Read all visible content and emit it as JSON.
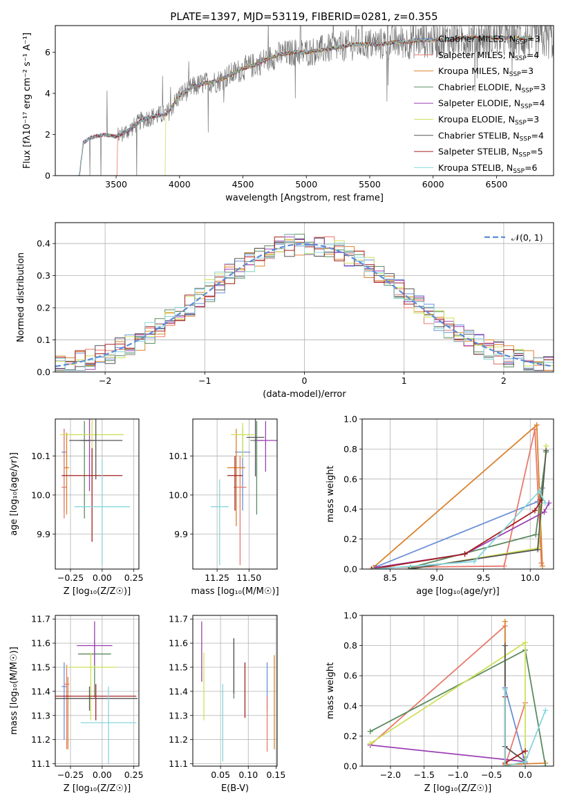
{
  "title": "PLATE=1397, MJD=53119, FIBERID=0281, z=0.355",
  "series_labels": [
    {
      "base": "Chabrier MILES, N",
      "sub": "SSP",
      "tail": "=3",
      "color": "#6a8fd6"
    },
    {
      "base": "Salpeter MILES, N",
      "sub": "SSP",
      "tail": "=4",
      "color": "#e8796c"
    },
    {
      "base": "Kroupa MILES, N",
      "sub": "SSP",
      "tail": "=3",
      "color": "#d9822b"
    },
    {
      "base": "Chabrier ELODIE, N",
      "sub": "SSP",
      "tail": "=3",
      "color": "#5a8a5e"
    },
    {
      "base": "Salpeter ELODIE, N",
      "sub": "SSP",
      "tail": "=4",
      "color": "#9b3fb3"
    },
    {
      "base": "Kroupa ELODIE, N",
      "sub": "SSP",
      "tail": "=3",
      "color": "#cfe05a"
    },
    {
      "base": "Chabrier STELIB, N",
      "sub": "SSP",
      "tail": "=4",
      "color": "#555555"
    },
    {
      "base": "Salpeter STELIB, N",
      "sub": "SSP",
      "tail": "=5",
      "color": "#a31f1f"
    },
    {
      "base": "Kroupa STELIB, N",
      "sub": "SSP",
      "tail": "=6",
      "color": "#86d6dc"
    }
  ],
  "chart_data": [
    {
      "id": "spectrum",
      "type": "line",
      "xlabel": "wavelength [Angstrom, rest frame]",
      "ylabel": "Flux [fλ10⁻¹⁷ erg cm⁻² s⁻¹ A⁻¹]",
      "xlim": [
        3020,
        6950
      ],
      "ylim": [
        0,
        7.3
      ],
      "xticks": [
        3500,
        4000,
        4500,
        5000,
        5500,
        6000,
        6500
      ],
      "yticks": [
        0,
        2,
        4,
        6
      ],
      "model_anchors": {
        "x": [
          3210,
          3240,
          3300,
          3400,
          3500,
          3600,
          3700,
          3800,
          3900,
          4000,
          4100,
          4200,
          4300,
          4400,
          4500,
          4600,
          4700,
          4800,
          4900,
          5000,
          5100,
          5200,
          5300,
          5400,
          5500,
          5600,
          5700,
          5800,
          5900,
          6000,
          6100,
          6200,
          6300,
          6400,
          6500,
          6600,
          6700
        ],
        "y": [
          0,
          1.6,
          1.85,
          2.0,
          1.9,
          2.2,
          2.7,
          2.9,
          3.0,
          3.9,
          4.3,
          4.5,
          4.6,
          4.9,
          5.2,
          5.4,
          5.7,
          5.9,
          6.0,
          6.0,
          6.1,
          6.2,
          6.3,
          6.4,
          6.4,
          6.4,
          6.5,
          6.5,
          6.6,
          6.6,
          6.6,
          6.7,
          6.7,
          6.7,
          6.7,
          6.7,
          6.7
        ]
      },
      "data_start_x": 3510
    },
    {
      "id": "residual-histogram",
      "type": "histogram",
      "xlabel": "(data-model)/error",
      "ylabel": "Normed distribution",
      "xlim": [
        -2.5,
        2.5
      ],
      "ylim": [
        0,
        0.465
      ],
      "xticks": [
        -2,
        -1,
        0,
        1,
        2
      ],
      "yticks": [
        0.0,
        0.1,
        0.2,
        0.3,
        0.4
      ],
      "bin_width": 0.1,
      "legend": "𝒩(0, 1)",
      "legend_position": "top-right",
      "reference_curve": "normal(0,1)"
    },
    {
      "id": "age-vs-z",
      "type": "errorbar",
      "xlabel": "Z [log₁₀(Z/Z☉)]",
      "ylabel": "age  [log₁₀(age/yr)]",
      "xlim": [
        -0.37,
        0.29
      ],
      "ylim": [
        9.81,
        10.195
      ],
      "xticks": [
        -0.25,
        0.0,
        0.25
      ],
      "yticks": [
        9.9,
        10.0,
        10.1
      ],
      "points": [
        {
          "x": -0.3,
          "xerr": 0.02,
          "y": 10.11,
          "yerr": [
            0.15,
            0.06
          ]
        },
        {
          "x": -0.3,
          "xerr": 0.02,
          "y": 10.02,
          "yerr": [
            0.08,
            0.15
          ]
        },
        {
          "x": -0.28,
          "xerr": 0.02,
          "y": 10.07,
          "yerr": [
            0.12,
            0.09
          ]
        },
        {
          "x": -0.14,
          "xerr": 0.04,
          "y": 10.14,
          "yerr": [
            0.2,
            0.05
          ]
        },
        {
          "x": -0.1,
          "xerr": 0.05,
          "y": 10.14,
          "yerr": [
            0.13,
            0.06
          ]
        },
        {
          "x": -0.08,
          "xerr": 0.25,
          "y": 10.155,
          "yerr": [
            0.12,
            0.06
          ]
        },
        {
          "x": -0.05,
          "xerr": 0.21,
          "y": 10.14,
          "yerr": [
            0.1,
            0.07
          ]
        },
        {
          "x": -0.08,
          "xerr": 0.24,
          "y": 10.05,
          "yerr": [
            0.17,
            0.07
          ]
        },
        {
          "x": 0.0,
          "xerr": 0.22,
          "y": 9.97,
          "yerr": [
            0.15,
            0.12
          ]
        }
      ]
    },
    {
      "id": "age-vs-mass",
      "type": "errorbar",
      "xlabel": "mass [log₁₀(M/M☉)]",
      "ylabel": "",
      "xlim": [
        11.06,
        11.72
      ],
      "ylim": [
        9.81,
        10.195
      ],
      "xticks": [
        11.25,
        11.5
      ],
      "yticks": [
        9.9,
        10.0,
        10.1
      ],
      "points": [
        {
          "x": 11.45,
          "xerr": 0.06,
          "y": 10.11,
          "yerr": [
            0.15,
            0.06
          ]
        },
        {
          "x": 11.43,
          "xerr": 0.05,
          "y": 10.02,
          "yerr": [
            0.2,
            0.08
          ]
        },
        {
          "x": 11.4,
          "xerr": 0.07,
          "y": 10.07,
          "yerr": [
            0.15,
            0.1
          ]
        },
        {
          "x": 11.56,
          "xerr": 0.05,
          "y": 10.14,
          "yerr": [
            0.19,
            0.05
          ]
        },
        {
          "x": 11.63,
          "xerr": 0.09,
          "y": 10.14,
          "yerr": [
            0.08,
            0.05
          ]
        },
        {
          "x": 11.45,
          "xerr": 0.09,
          "y": 10.155,
          "yerr": [
            0.06,
            0.03
          ]
        },
        {
          "x": 11.55,
          "xerr": 0.07,
          "y": 10.148,
          "yerr": [
            0.1,
            0.05
          ]
        },
        {
          "x": 11.39,
          "xerr": 0.06,
          "y": 10.05,
          "yerr": [
            0.09,
            0.05
          ]
        },
        {
          "x": 11.27,
          "xerr": 0.07,
          "y": 9.97,
          "yerr": [
            0.15,
            0.07
          ]
        }
      ]
    },
    {
      "id": "massweight-vs-age",
      "type": "line",
      "xlabel": "age  [log₁₀(age/yr)]",
      "ylabel": "mass weight",
      "xlim": [
        8.2,
        10.25
      ],
      "ylim": [
        0,
        1.0
      ],
      "xticks": [
        8.5,
        9.0,
        9.5,
        10.0
      ],
      "yticks": [
        0.0,
        0.2,
        0.4,
        0.6,
        0.8,
        1.0
      ],
      "series": [
        {
          "x": [
            8.33,
            10.08,
            10.13
          ],
          "y": [
            0.01,
            0.45,
            0.54
          ]
        },
        {
          "x": [
            8.35,
            9.72,
            10.05,
            10.12
          ],
          "y": [
            0.01,
            0.02,
            0.93,
            0.04
          ]
        },
        {
          "x": [
            8.32,
            10.07,
            10.13
          ],
          "y": [
            0.01,
            0.96,
            0.02
          ]
        },
        {
          "x": [
            8.72,
            10.06,
            10.17
          ],
          "y": [
            0.01,
            0.23,
            0.78
          ]
        },
        {
          "x": [
            8.35,
            9.3,
            10.15,
            10.2
          ],
          "y": [
            0.01,
            0.1,
            0.38,
            0.44
          ]
        },
        {
          "x": [
            8.72,
            10.09,
            10.17
          ],
          "y": [
            0.0,
            0.14,
            0.82
          ]
        },
        {
          "x": [
            8.7,
            10.08,
            10.17
          ],
          "y": [
            0.0,
            0.13,
            0.79
          ]
        },
        {
          "x": [
            8.3,
            9.3,
            10.05,
            10.12
          ],
          "y": [
            0.0,
            0.1,
            0.39,
            0.46
          ]
        },
        {
          "x": [
            8.32,
            9.4,
            10.1,
            10.16
          ],
          "y": [
            0.0,
            0.05,
            0.52,
            0.44
          ]
        }
      ]
    },
    {
      "id": "mass-vs-z",
      "type": "errorbar",
      "xlabel": "Z [log₁₀(Z/Z☉)]",
      "ylabel": "mass [log₁₀(M/M☉)]",
      "xlim": [
        -0.37,
        0.29
      ],
      "ylim": [
        11.09,
        11.715
      ],
      "xticks": [
        -0.25,
        0.0,
        0.25
      ],
      "yticks": [
        11.1,
        11.2,
        11.3,
        11.4,
        11.5,
        11.6,
        11.7
      ],
      "points": [
        {
          "x": -0.3,
          "xerr": 0.02,
          "y": 11.42,
          "yerr": [
            0.22,
            0.1
          ]
        },
        {
          "x": -0.28,
          "xerr": 0.02,
          "y": 11.43,
          "yerr": [
            0.27,
            0.08
          ]
        },
        {
          "x": -0.27,
          "xerr": 0.02,
          "y": 11.38,
          "yerr": [
            0.22,
            0.08
          ]
        },
        {
          "x": -0.06,
          "xerr": 0.13,
          "y": 11.555,
          "yerr": [
            0.18,
            0.06
          ]
        },
        {
          "x": -0.06,
          "xerr": 0.14,
          "y": 11.59,
          "yerr": [
            0.08,
            0.1
          ]
        },
        {
          "x": -0.09,
          "xerr": 0.2,
          "y": 11.5,
          "yerr": [
            0.22,
            0.06
          ]
        },
        {
          "x": -0.1,
          "xerr": 0.38,
          "y": 11.37,
          "yerr": [
            0.05,
            0.05
          ]
        },
        {
          "x": -0.05,
          "xerr": 0.32,
          "y": 11.38,
          "yerr": [
            0.1,
            0.05
          ]
        },
        {
          "x": 0.05,
          "xerr": 0.22,
          "y": 11.27,
          "yerr": [
            0.17,
            0.15
          ]
        }
      ]
    },
    {
      "id": "mass-vs-ebv",
      "type": "errorbar",
      "xlabel": "E(B-V)",
      "ylabel": "",
      "xlim": [
        0.0,
        0.152
      ],
      "ylim": [
        11.09,
        11.715
      ],
      "xticks": [
        0.05,
        0.1,
        0.15
      ],
      "yticks": [
        11.1,
        11.2,
        11.3,
        11.4,
        11.5,
        11.6,
        11.7
      ],
      "points": [
        {
          "x": 0.134,
          "xerr": 0,
          "y": 11.42,
          "yerr": [
            0.1,
            0.1
          ]
        },
        {
          "x": 0.134,
          "xerr": 0,
          "y": 11.3,
          "yerr": [
            0.15,
            0.08
          ]
        },
        {
          "x": 0.147,
          "xerr": 0,
          "y": 11.38,
          "yerr": [
            0.22,
            0.17
          ]
        },
        {
          "x": 0.074,
          "xerr": 0,
          "y": 11.5,
          "yerr": [
            0.13,
            0.12
          ]
        },
        {
          "x": 0.016,
          "xerr": 0,
          "y": 11.58,
          "yerr": [
            0.14,
            0.11
          ]
        },
        {
          "x": 0.02,
          "xerr": 0,
          "y": 11.4,
          "yerr": [
            0.12,
            0.16
          ]
        },
        {
          "x": 0.074,
          "xerr": 0,
          "y": 11.5,
          "yerr": [
            0.11,
            0.12
          ]
        },
        {
          "x": 0.094,
          "xerr": 0,
          "y": 11.4,
          "yerr": [
            0.11,
            0.12
          ]
        },
        {
          "x": 0.054,
          "xerr": 0,
          "y": 11.27,
          "yerr": [
            0.16,
            0.16
          ]
        }
      ]
    },
    {
      "id": "massweight-vs-z",
      "type": "line",
      "xlabel": "Z [log₁₀(Z/Z☉)]",
      "ylabel": "mass weight",
      "xlim": [
        -2.42,
        0.42
      ],
      "ylim": [
        0,
        1.0
      ],
      "xticks": [
        -2.0,
        -1.5,
        -1.0,
        -0.5,
        0.0
      ],
      "yticks": [
        0.0,
        0.2,
        0.4,
        0.6,
        0.8,
        1.0
      ],
      "series": [
        {
          "x": [
            -0.3,
            -0.3,
            0.0
          ],
          "y": [
            0.0,
            0.52,
            0.02
          ]
        },
        {
          "x": [
            -2.3,
            -0.3,
            -0.3,
            0.0
          ],
          "y": [
            0.14,
            0.93,
            0.0,
            0.42
          ]
        },
        {
          "x": [
            -0.3,
            -0.3,
            0.3
          ],
          "y": [
            0.96,
            0.01,
            0.02
          ]
        },
        {
          "x": [
            -2.3,
            0.0,
            0.3
          ],
          "y": [
            0.23,
            0.77,
            0.0
          ]
        },
        {
          "x": [
            -2.3,
            0.0,
            0.0
          ],
          "y": [
            0.14,
            0.03,
            0.06
          ]
        },
        {
          "x": [
            -2.3,
            0.0,
            0.0
          ],
          "y": [
            0.15,
            0.82,
            0.03
          ]
        },
        {
          "x": [
            -0.3,
            -0.3,
            0.0
          ],
          "y": [
            0.8,
            0.13,
            0.03
          ]
        },
        {
          "x": [
            -0.3,
            -0.3,
            0.0
          ],
          "y": [
            0.46,
            0.02,
            0.1
          ]
        },
        {
          "x": [
            -0.3,
            -0.3,
            0.0,
            0.3
          ],
          "y": [
            0.51,
            0.0,
            0.03,
            0.37
          ]
        }
      ]
    }
  ]
}
